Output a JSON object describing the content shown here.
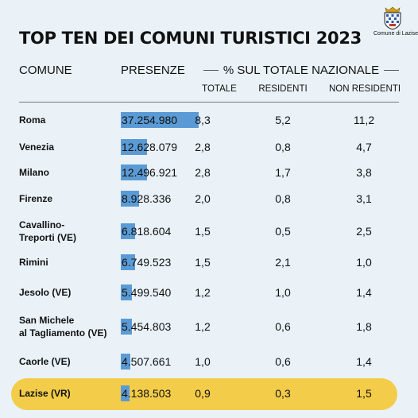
{
  "header": {
    "title": "TOP TEN DEI COMUNI TURISTICI 2023",
    "logo_text": "Comune di Lazise"
  },
  "columns": {
    "comune": "COMUNE",
    "presenze": "PRESENZE",
    "group": "% SUL TOTALE NAZIONALE",
    "totale": "TOTALE",
    "residenti": "RESIDENTI",
    "non_residenti": "NON RESIDENTI"
  },
  "colors": {
    "background": "#eaf2f8",
    "bar": "#5b9bd5",
    "highlight": "#f3cc4a"
  },
  "chart_data": {
    "type": "table",
    "title": "TOP TEN DEI COMUNI TURISTICI 2023",
    "highlight": "Lazise (VR)",
    "rows": [
      {
        "comune": [
          "Roma"
        ],
        "presenze_label": "37.254.980",
        "presenze": 37254980,
        "totale": "8,3",
        "residenti": "5,2",
        "non_residenti": "11,2"
      },
      {
        "comune": [
          "Venezia"
        ],
        "presenze_label": "12.628.079",
        "presenze": 12628079,
        "totale": "2,8",
        "residenti": "0,8",
        "non_residenti": "4,7"
      },
      {
        "comune": [
          "Milano"
        ],
        "presenze_label": "12.496.921",
        "presenze": 12496921,
        "totale": "2,8",
        "residenti": "1,7",
        "non_residenti": "3,8"
      },
      {
        "comune": [
          "Firenze"
        ],
        "presenze_label": "8.928.336",
        "presenze": 8928336,
        "totale": "2,0",
        "residenti": "0,8",
        "non_residenti": "3,1"
      },
      {
        "comune": [
          "Cavallino-",
          "Treporti (VE)"
        ],
        "presenze_label": "6.818.604",
        "presenze": 6818604,
        "totale": "1,5",
        "residenti": "0,5",
        "non_residenti": "2,5"
      },
      {
        "comune": [
          "Rimini"
        ],
        "presenze_label": "6.749.523",
        "presenze": 6749523,
        "totale": "1,5",
        "residenti": "2,1",
        "non_residenti": "1,0"
      },
      {
        "comune": [
          "Jesolo (VE)"
        ],
        "presenze_label": "5.499.540",
        "presenze": 5499540,
        "totale": "1,2",
        "residenti": "1,0",
        "non_residenti": "1,4"
      },
      {
        "comune": [
          "San Michele",
          "al Tagliamento (VE)"
        ],
        "presenze_label": "5.454.803",
        "presenze": 5454803,
        "totale": "1,2",
        "residenti": "0,6",
        "non_residenti": "1,8"
      },
      {
        "comune": [
          "Caorle (VE)"
        ],
        "presenze_label": "4.507.661",
        "presenze": 4507661,
        "totale": "1,0",
        "residenti": "0,6",
        "non_residenti": "1,4"
      },
      {
        "comune": [
          "Lazise (VR)"
        ],
        "presenze_label": "4.138.503",
        "presenze": 4138503,
        "totale": "0,9",
        "residenti": "0,3",
        "non_residenti": "1,5"
      }
    ]
  }
}
